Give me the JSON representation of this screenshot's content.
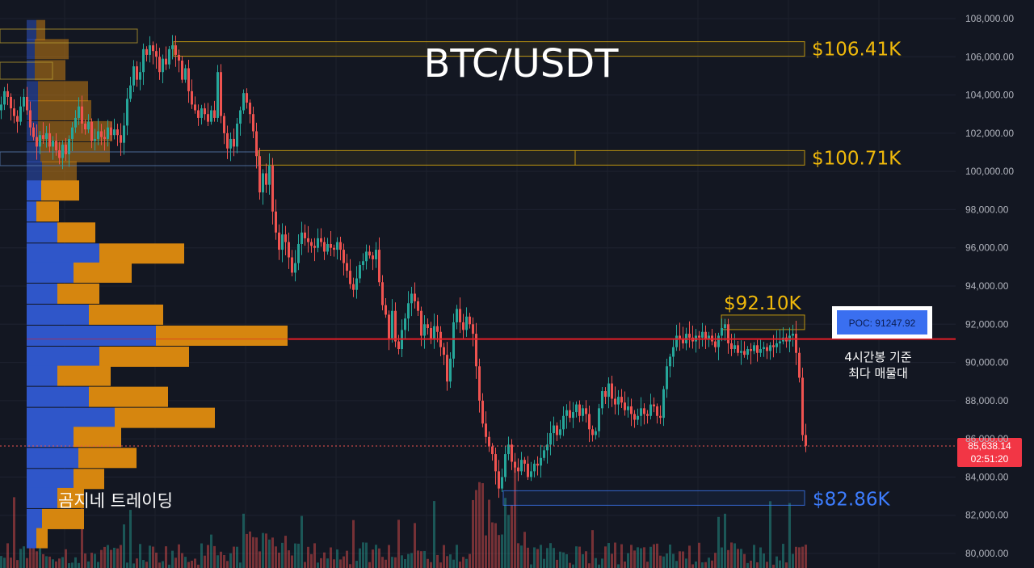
{
  "chart_data": {
    "type": "candlestick",
    "title": "BTC/USDT",
    "watermark": "곰지네 트레이딩",
    "y_axis": {
      "range": [
        79500,
        109000
      ],
      "ticks": [
        80000,
        82000,
        84000,
        86000,
        88000,
        90000,
        92000,
        94000,
        96000,
        98000,
        100000,
        102000,
        104000,
        106000,
        108000
      ],
      "tick_labels": [
        "80,000.00",
        "82,000.00",
        "84,000.00",
        "86,000.00",
        "88,000.00",
        "90,000.00",
        "92,000.00",
        "94,000.00",
        "96,000.00",
        "98,000.00",
        "100,000.00",
        "102,000.00",
        "104,000.00",
        "106,000.00",
        "108,000.00"
      ]
    },
    "levels": [
      {
        "label": "$106.41K",
        "price": 106410,
        "color": "#f0b90b"
      },
      {
        "label": "$100.71K",
        "price": 100710,
        "color": "#f0b90b"
      },
      {
        "label": "$92.10K",
        "price": 92100,
        "color": "#f0b90b"
      },
      {
        "label": "$82.86K",
        "price": 82860,
        "color": "#3d7dff"
      }
    ],
    "poc": {
      "label": "POC: 91247.92",
      "price": 91247.92,
      "note_lines": [
        "4시간봉 기준",
        "최다 매물대"
      ]
    },
    "current_price": {
      "value": "85,638.14",
      "countdown": "02:51:20"
    },
    "colors": {
      "up": "#26a69a",
      "down": "#ef5350",
      "poc_line": "#e01e27",
      "buy_profile": "#2f56c9",
      "sell_profile": "#d6860f",
      "level": "#f0b90b"
    },
    "grid": true,
    "candles_close_path": [
      [
        0,
        103500
      ],
      [
        4,
        104200
      ],
      [
        8,
        103900
      ],
      [
        12,
        103300
      ],
      [
        16,
        102900
      ],
      [
        20,
        102600
      ],
      [
        24,
        103400
      ],
      [
        28,
        103900
      ],
      [
        32,
        103200
      ],
      [
        36,
        102300
      ],
      [
        40,
        101800
      ],
      [
        44,
        101300
      ],
      [
        48,
        101900
      ],
      [
        52,
        101700
      ],
      [
        56,
        102000
      ],
      [
        60,
        101300
      ],
      [
        64,
        101600
      ],
      [
        68,
        101100
      ],
      [
        72,
        100700
      ],
      [
        76,
        101400
      ],
      [
        80,
        100900
      ],
      [
        84,
        101700
      ],
      [
        88,
        102300
      ],
      [
        92,
        102800
      ],
      [
        96,
        103400
      ],
      [
        100,
        102500
      ],
      [
        104,
        102200
      ],
      [
        108,
        102600
      ],
      [
        112,
        101600
      ],
      [
        116,
        101700
      ],
      [
        120,
        102100
      ],
      [
        124,
        101800
      ],
      [
        128,
        101700
      ],
      [
        132,
        102300
      ],
      [
        136,
        101900
      ],
      [
        140,
        102200
      ],
      [
        144,
        101900
      ],
      [
        148,
        101500
      ],
      [
        152,
        102400
      ],
      [
        156,
        103800
      ],
      [
        160,
        104500
      ],
      [
        164,
        105500
      ],
      [
        168,
        104800
      ],
      [
        172,
        105200
      ],
      [
        176,
        106400
      ],
      [
        180,
        106100
      ],
      [
        184,
        106600
      ],
      [
        188,
        106300
      ],
      [
        192,
        106000
      ],
      [
        196,
        105200
      ],
      [
        200,
        105900
      ],
      [
        204,
        105600
      ],
      [
        208,
        106400
      ],
      [
        212,
        106600
      ],
      [
        216,
        106100
      ],
      [
        220,
        105800
      ],
      [
        224,
        104800
      ],
      [
        228,
        105400
      ],
      [
        232,
        104200
      ],
      [
        236,
        103500
      ],
      [
        240,
        103200
      ],
      [
        244,
        102800
      ],
      [
        248,
        103300
      ],
      [
        252,
        103000
      ],
      [
        256,
        102600
      ],
      [
        260,
        103200
      ],
      [
        264,
        102800
      ],
      [
        268,
        105200
      ],
      [
        272,
        102900
      ],
      [
        276,
        102000
      ],
      [
        280,
        101200
      ],
      [
        284,
        101700
      ],
      [
        288,
        101300
      ],
      [
        292,
        102500
      ],
      [
        296,
        103200
      ],
      [
        300,
        104100
      ],
      [
        304,
        103600
      ],
      [
        308,
        103000
      ],
      [
        312,
        102100
      ],
      [
        316,
        100800
      ],
      [
        320,
        98900
      ],
      [
        324,
        99900
      ],
      [
        328,
        99300
      ],
      [
        332,
        100300
      ],
      [
        336,
        97900
      ],
      [
        340,
        96800
      ],
      [
        344,
        95900
      ],
      [
        348,
        96700
      ],
      [
        352,
        96300
      ],
      [
        356,
        95500
      ],
      [
        360,
        94700
      ],
      [
        364,
        95200
      ],
      [
        368,
        96200
      ],
      [
        372,
        96800
      ],
      [
        376,
        96500
      ],
      [
        380,
        96300
      ],
      [
        384,
        96100
      ],
      [
        388,
        96000
      ],
      [
        392,
        96500
      ],
      [
        396,
        96300
      ],
      [
        400,
        95800
      ],
      [
        404,
        96200
      ],
      [
        408,
        96000
      ],
      [
        412,
        95900
      ],
      [
        416,
        96300
      ],
      [
        420,
        95900
      ],
      [
        424,
        95200
      ],
      [
        428,
        94800
      ],
      [
        432,
        94100
      ],
      [
        436,
        93800
      ],
      [
        440,
        94400
      ],
      [
        444,
        95100
      ],
      [
        448,
        95300
      ],
      [
        452,
        95800
      ],
      [
        456,
        95600
      ],
      [
        460,
        95400
      ],
      [
        464,
        95900
      ],
      [
        468,
        94200
      ],
      [
        472,
        93000
      ],
      [
        476,
        92500
      ],
      [
        480,
        91200
      ],
      [
        484,
        92700
      ],
      [
        488,
        91100
      ],
      [
        492,
        90700
      ],
      [
        496,
        91700
      ],
      [
        500,
        92300
      ],
      [
        504,
        93100
      ],
      [
        508,
        93600
      ],
      [
        512,
        93200
      ],
      [
        516,
        92700
      ],
      [
        520,
        91400
      ],
      [
        524,
        92000
      ],
      [
        528,
        91800
      ],
      [
        532,
        91200
      ],
      [
        536,
        91900
      ],
      [
        540,
        91600
      ],
      [
        544,
        90800
      ],
      [
        548,
        90400
      ],
      [
        552,
        89000
      ],
      [
        556,
        90200
      ],
      [
        560,
        92100
      ],
      [
        564,
        92800
      ],
      [
        568,
        92100
      ],
      [
        572,
        91700
      ],
      [
        576,
        92400
      ],
      [
        580,
        92000
      ],
      [
        584,
        91500
      ],
      [
        588,
        89800
      ],
      [
        592,
        88000
      ],
      [
        596,
        86800
      ],
      [
        600,
        86100
      ],
      [
        604,
        85600
      ],
      [
        608,
        85200
      ],
      [
        612,
        84300
      ],
      [
        616,
        83400
      ],
      [
        620,
        84000
      ],
      [
        624,
        85200
      ],
      [
        628,
        85700
      ],
      [
        632,
        84800
      ],
      [
        636,
        84500
      ],
      [
        640,
        84300
      ],
      [
        644,
        84900
      ],
      [
        648,
        84700
      ],
      [
        652,
        84000
      ],
      [
        656,
        84300
      ],
      [
        660,
        84700
      ],
      [
        664,
        84600
      ],
      [
        668,
        85000
      ],
      [
        672,
        85400
      ],
      [
        676,
        85700
      ],
      [
        680,
        86300
      ],
      [
        684,
        86700
      ],
      [
        688,
        86200
      ],
      [
        692,
        86500
      ],
      [
        696,
        87200
      ],
      [
        700,
        87500
      ],
      [
        704,
        87100
      ],
      [
        708,
        87400
      ],
      [
        712,
        87800
      ],
      [
        716,
        87200
      ],
      [
        720,
        87600
      ],
      [
        724,
        87300
      ],
      [
        728,
        86500
      ],
      [
        732,
        86200
      ],
      [
        736,
        86400
      ],
      [
        740,
        87600
      ],
      [
        744,
        88500
      ],
      [
        748,
        88200
      ],
      [
        752,
        88900
      ],
      [
        756,
        88100
      ],
      [
        760,
        87800
      ],
      [
        764,
        88200
      ],
      [
        768,
        87900
      ],
      [
        772,
        87500
      ],
      [
        776,
        87700
      ],
      [
        780,
        87300
      ],
      [
        784,
        87000
      ],
      [
        788,
        87200
      ],
      [
        792,
        87600
      ],
      [
        796,
        87300
      ],
      [
        800,
        87200
      ],
      [
        804,
        87800
      ],
      [
        808,
        87700
      ],
      [
        812,
        87200
      ],
      [
        816,
        87100
      ],
      [
        820,
        88600
      ],
      [
        824,
        89800
      ],
      [
        828,
        90300
      ],
      [
        832,
        90800
      ],
      [
        836,
        91400
      ],
      [
        840,
        91200
      ],
      [
        844,
        91000
      ],
      [
        848,
        91500
      ],
      [
        852,
        91300
      ],
      [
        856,
        91100
      ],
      [
        860,
        91400
      ],
      [
        864,
        91300
      ],
      [
        868,
        91600
      ],
      [
        872,
        91200
      ],
      [
        876,
        91400
      ],
      [
        880,
        91100
      ],
      [
        884,
        90800
      ],
      [
        888,
        91400
      ],
      [
        892,
        91800
      ],
      [
        896,
        92000
      ],
      [
        900,
        91000
      ],
      [
        904,
        90700
      ],
      [
        908,
        90900
      ],
      [
        912,
        90500
      ],
      [
        916,
        90600
      ],
      [
        920,
        90400
      ],
      [
        924,
        90700
      ],
      [
        928,
        90600
      ],
      [
        932,
        90900
      ],
      [
        936,
        90500
      ],
      [
        940,
        90700
      ],
      [
        944,
        90800
      ],
      [
        948,
        90600
      ],
      [
        952,
        90900
      ],
      [
        956,
        90800
      ],
      [
        960,
        91000
      ],
      [
        964,
        91100
      ],
      [
        968,
        91300
      ],
      [
        972,
        91100
      ],
      [
        976,
        91400
      ],
      [
        980,
        91500
      ],
      [
        984,
        90500
      ],
      [
        988,
        89200
      ],
      [
        992,
        86200
      ],
      [
        996,
        85638
      ]
    ],
    "volume_profile": [
      {
        "price": 107400,
        "buy": 12,
        "sell": 11
      },
      {
        "price": 106400,
        "buy": 10,
        "sell": 42
      },
      {
        "price": 105300,
        "buy": 10,
        "sell": 38
      },
      {
        "price": 104200,
        "buy": 14,
        "sell": 62
      },
      {
        "price": 103200,
        "buy": 14,
        "sell": 66
      },
      {
        "price": 102100,
        "buy": 14,
        "sell": 92
      },
      {
        "price": 101000,
        "buy": 17,
        "sell": 86
      },
      {
        "price": 100000,
        "buy": 19,
        "sell": 43
      },
      {
        "price": 99000,
        "buy": 18,
        "sell": 47
      },
      {
        "price": 97900,
        "buy": 12,
        "sell": 28
      },
      {
        "price": 96800,
        "buy": 38,
        "sell": 47
      },
      {
        "price": 95700,
        "buy": 90,
        "sell": 105
      },
      {
        "price": 94700,
        "buy": 58,
        "sell": 72
      },
      {
        "price": 93600,
        "buy": 38,
        "sell": 52
      },
      {
        "price": 92500,
        "buy": 77,
        "sell": 92
      },
      {
        "price": 91400,
        "buy": 160,
        "sell": 163
      },
      {
        "price": 90300,
        "buy": 90,
        "sell": 111
      },
      {
        "price": 89300,
        "buy": 38,
        "sell": 66
      },
      {
        "price": 88200,
        "buy": 77,
        "sell": 98
      },
      {
        "price": 87100,
        "buy": 109,
        "sell": 124
      },
      {
        "price": 86100,
        "buy": 58,
        "sell": 59
      },
      {
        "price": 85000,
        "buy": 64,
        "sell": 72
      },
      {
        "price": 83900,
        "buy": 58,
        "sell": 38
      },
      {
        "price": 82900,
        "buy": 38,
        "sell": 33
      },
      {
        "price": 81800,
        "buy": 19,
        "sell": 52
      },
      {
        "price": 80800,
        "buy": 12,
        "sell": 14
      }
    ]
  }
}
